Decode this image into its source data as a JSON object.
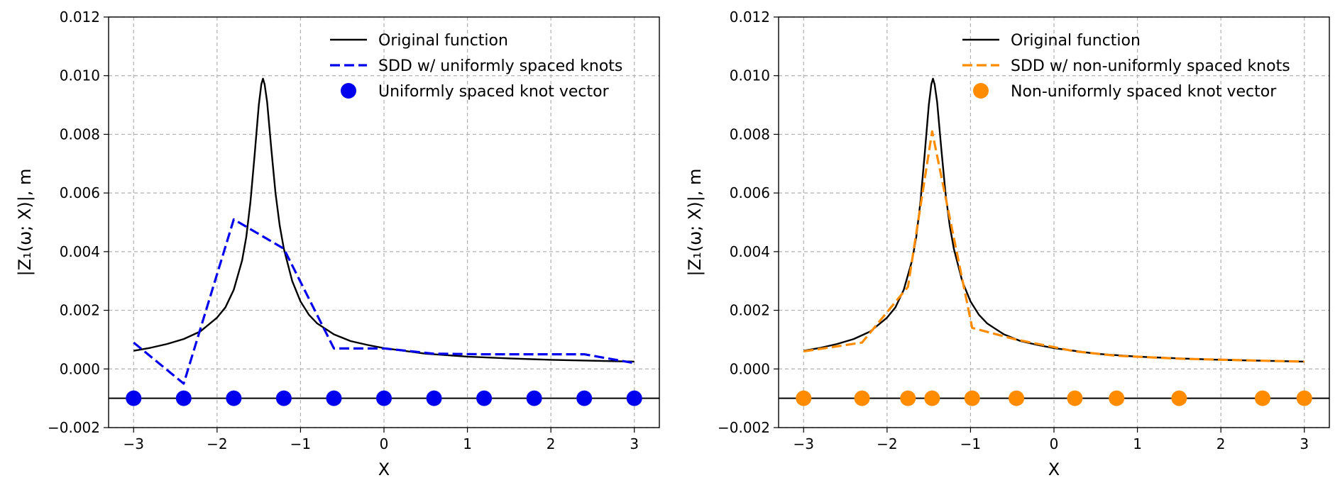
{
  "chart_data": [
    {
      "type": "line",
      "panel": "left",
      "xlabel": "X",
      "ylabel": "|Z₁(ω; X)|, m",
      "xlim": [
        -3.3,
        3.3
      ],
      "ylim": [
        -0.002,
        0.012
      ],
      "xticks": [
        -3,
        -2,
        -1,
        0,
        1,
        2,
        3
      ],
      "xtick_labels": [
        "−3",
        "−2",
        "−1",
        "0",
        "1",
        "2",
        "3"
      ],
      "yticks": [
        -0.002,
        0.0,
        0.002,
        0.004,
        0.006,
        0.008,
        0.01,
        0.012
      ],
      "ytick_labels": [
        "−0.002",
        "0.000",
        "0.002",
        "0.004",
        "0.006",
        "0.008",
        "0.010",
        "0.012"
      ],
      "grid": true,
      "legend_position": "top-right",
      "reference_line_y": -0.001,
      "series": [
        {
          "name": "Original function",
          "style": "solid",
          "color": "#000000",
          "x": [
            -3.0,
            -2.8,
            -2.6,
            -2.4,
            -2.2,
            -2.0,
            -1.9,
            -1.8,
            -1.7,
            -1.65,
            -1.6,
            -1.55,
            -1.5,
            -1.47,
            -1.45,
            -1.43,
            -1.4,
            -1.35,
            -1.3,
            -1.25,
            -1.2,
            -1.1,
            -1.0,
            -0.9,
            -0.8,
            -0.6,
            -0.4,
            -0.2,
            0.0,
            0.5,
            1.0,
            1.5,
            2.0,
            2.5,
            3.0
          ],
          "y": [
            0.00062,
            0.00072,
            0.00085,
            0.00102,
            0.00128,
            0.00175,
            0.0021,
            0.0027,
            0.0037,
            0.0045,
            0.0057,
            0.0073,
            0.009,
            0.0097,
            0.0099,
            0.0097,
            0.0091,
            0.0075,
            0.006,
            0.0049,
            0.0041,
            0.003,
            0.0023,
            0.00185,
            0.00155,
            0.00118,
            0.00095,
            0.00082,
            0.00071,
            0.00052,
            0.00042,
            0.00036,
            0.00031,
            0.00028,
            0.00025
          ]
        },
        {
          "name": "SDD w/ uniformly spaced knots",
          "style": "dashed",
          "color": "#0000ee",
          "x": [
            -3.0,
            -2.4,
            -1.8,
            -1.2,
            -0.6,
            0.0,
            0.6,
            1.2,
            1.8,
            2.4,
            3.0
          ],
          "y": [
            0.0009,
            -0.0005,
            0.0051,
            0.0041,
            0.0007,
            0.0007,
            0.00052,
            0.0005,
            0.0005,
            0.0005,
            0.0002
          ]
        }
      ],
      "knots": {
        "name": "Uniformly spaced knot vector",
        "color": "#0000ee",
        "y": -0.001,
        "x": [
          -3.0,
          -2.4,
          -1.8,
          -1.2,
          -0.6,
          0.0,
          0.6,
          1.2,
          1.8,
          2.4,
          3.0
        ]
      }
    },
    {
      "type": "line",
      "panel": "right",
      "xlabel": "X",
      "ylabel": "|Z₁(ω; X)|, m",
      "xlim": [
        -3.3,
        3.3
      ],
      "ylim": [
        -0.002,
        0.012
      ],
      "xticks": [
        -3,
        -2,
        -1,
        0,
        1,
        2,
        3
      ],
      "xtick_labels": [
        "−3",
        "−2",
        "−1",
        "0",
        "1",
        "2",
        "3"
      ],
      "yticks": [
        -0.002,
        0.0,
        0.002,
        0.004,
        0.006,
        0.008,
        0.01,
        0.012
      ],
      "ytick_labels": [
        "−0.002",
        "0.000",
        "0.002",
        "0.004",
        "0.006",
        "0.008",
        "0.010",
        "0.012"
      ],
      "grid": true,
      "legend_position": "top-right",
      "reference_line_y": -0.001,
      "series": [
        {
          "name": "Original function",
          "style": "solid",
          "color": "#000000",
          "x": [
            -3.0,
            -2.8,
            -2.6,
            -2.4,
            -2.2,
            -2.0,
            -1.9,
            -1.8,
            -1.7,
            -1.65,
            -1.6,
            -1.55,
            -1.5,
            -1.47,
            -1.45,
            -1.43,
            -1.4,
            -1.35,
            -1.3,
            -1.25,
            -1.2,
            -1.1,
            -1.0,
            -0.9,
            -0.8,
            -0.6,
            -0.4,
            -0.2,
            0.0,
            0.5,
            1.0,
            1.5,
            2.0,
            2.5,
            3.0
          ],
          "y": [
            0.00062,
            0.00072,
            0.00085,
            0.00102,
            0.00128,
            0.00175,
            0.0021,
            0.0027,
            0.0037,
            0.0045,
            0.0057,
            0.0073,
            0.009,
            0.0097,
            0.0099,
            0.0097,
            0.0091,
            0.0075,
            0.006,
            0.0049,
            0.0041,
            0.003,
            0.0023,
            0.00185,
            0.00155,
            0.00118,
            0.00095,
            0.00082,
            0.00071,
            0.00052,
            0.00042,
            0.00036,
            0.00031,
            0.00028,
            0.00025
          ]
        },
        {
          "name": "SDD w/ non-uniformly spaced knots",
          "style": "dashed",
          "color": "#ff8c00",
          "x": [
            -3.0,
            -2.3,
            -1.75,
            -1.46,
            -0.98,
            -0.45,
            0.25,
            0.75,
            1.5,
            2.5,
            3.0
          ],
          "y": [
            0.0006,
            0.0009,
            0.0028,
            0.0081,
            0.0014,
            0.001,
            0.0006,
            0.00045,
            0.00035,
            0.00028,
            0.00025
          ]
        }
      ],
      "knots": {
        "name": "Non-uniformly spaced knot vector",
        "color": "#ff8c00",
        "y": -0.001,
        "x": [
          -3.0,
          -2.3,
          -1.75,
          -1.46,
          -0.98,
          -0.45,
          0.25,
          0.75,
          1.5,
          2.5,
          3.0
        ]
      }
    }
  ]
}
